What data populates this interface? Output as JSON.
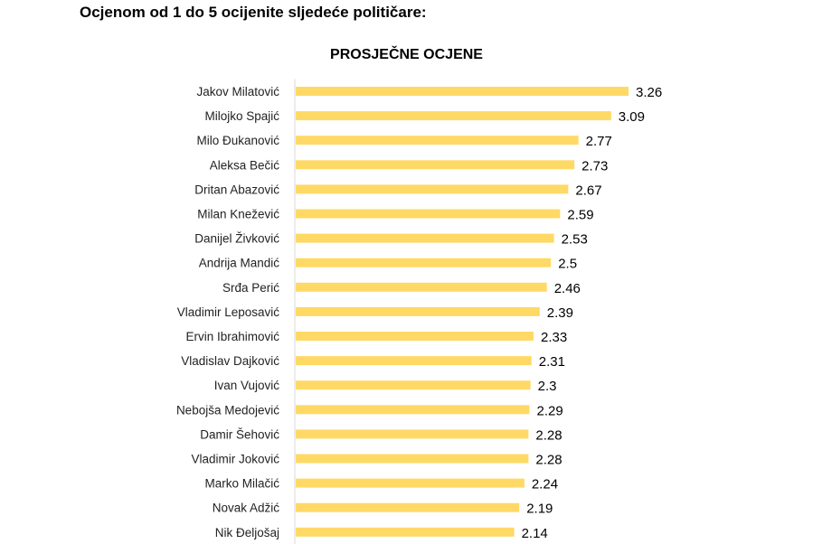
{
  "question": "Ocjenom od 1 do 5 ocijenite sljedeće političare:",
  "colors": {
    "bar": "#FFD966",
    "text": "#000000"
  },
  "chart_data": {
    "type": "bar",
    "orientation": "horizontal",
    "title": "PROSJEČNE OCJENE",
    "categories": [
      "Jakov Milatović",
      "Milojko Spajić",
      "Milo Đukanović",
      "Aleksa Bečić",
      "Dritan Abazović",
      "Milan Knežević",
      "Danijel Živković",
      "Andrija Mandić",
      "Srđa Perić",
      "Vladimir Leposavić",
      "Ervin Ibrahimović",
      "Vladislav Dajković",
      "Ivan Vujović",
      "Nebojša Medojević",
      "Damir Šehović",
      "Vladimir Joković",
      "Marko Milačić",
      "Novak Adžić",
      "Nik Đeljošaj"
    ],
    "values": [
      3.26,
      3.09,
      2.77,
      2.73,
      2.67,
      2.59,
      2.53,
      2.5,
      2.46,
      2.39,
      2.33,
      2.31,
      2.3,
      2.29,
      2.28,
      2.28,
      2.24,
      2.19,
      2.14
    ],
    "value_labels": [
      "3.26",
      "3.09",
      "2.77",
      "2.73",
      "2.67",
      "2.59",
      "2.53",
      "2.5",
      "2.46",
      "2.39",
      "2.33",
      "2.31",
      "2.3",
      "2.29",
      "2.28",
      "2.28",
      "2.24",
      "2.19",
      "2.14"
    ],
    "xlim": [
      0,
      3.26
    ],
    "grid": false,
    "legend": "none"
  }
}
